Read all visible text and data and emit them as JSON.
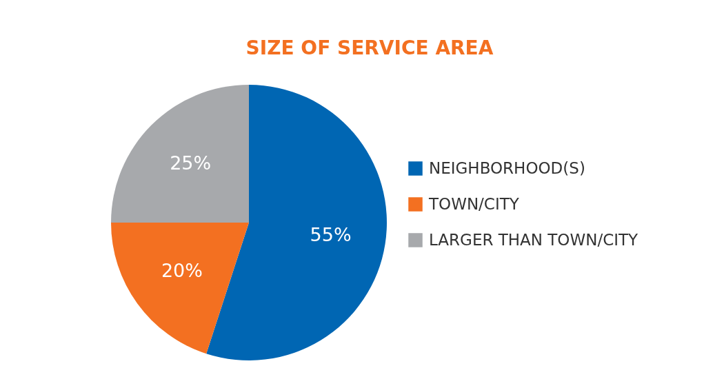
{
  "chart_data": {
    "type": "pie",
    "title": "SIZE OF SERVICE AREA",
    "categories": [
      "NEIGHBORHOOD(S)",
      "TOWN/CITY",
      "LARGER THAN TOWN/CITY"
    ],
    "values": [
      55,
      20,
      25
    ],
    "colors": [
      "#0066b3",
      "#f37021",
      "#a7a9ac"
    ],
    "value_labels": [
      "55%",
      "20%",
      "25%"
    ],
    "legend": "right"
  }
}
